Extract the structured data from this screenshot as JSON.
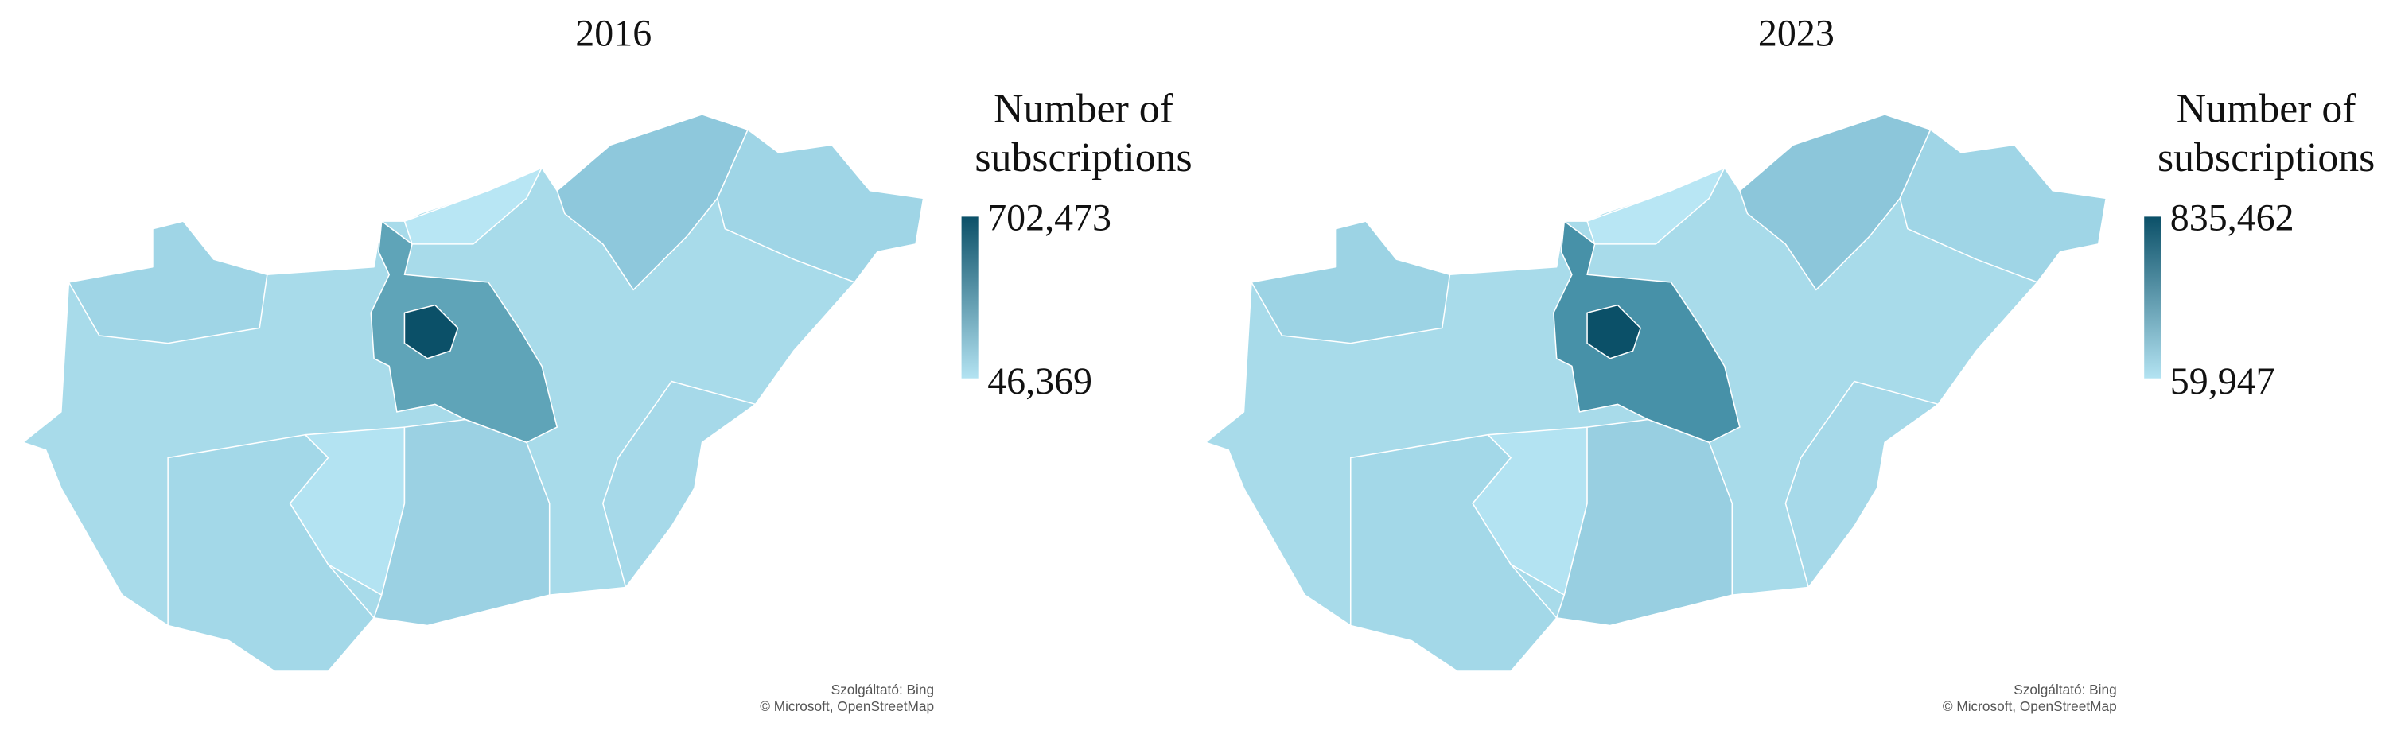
{
  "maps": [
    {
      "title": "2016",
      "legend": {
        "title": [
          "Number of",
          "subscriptions"
        ],
        "max": {
          "value": 702473,
          "label": "702,473"
        },
        "min": {
          "value": 46369,
          "label": "46,369"
        },
        "color_max": "#0b5068",
        "color_min": "#b3e3f2"
      },
      "attribution": [
        "Szolgáltató: Bing",
        "© Microsoft, OpenStreetMap"
      ]
    },
    {
      "title": "2023",
      "legend": {
        "title": [
          "Number of",
          "subscriptions"
        ],
        "max": {
          "value": 835462,
          "label": "835,462"
        },
        "min": {
          "value": 59947,
          "label": "59,947"
        },
        "color_max": "#0b5068",
        "color_min": "#b3e3f2"
      },
      "attribution": [
        "Szolgáltató: Bing",
        "© Microsoft, OpenStreetMap"
      ]
    }
  ]
}
